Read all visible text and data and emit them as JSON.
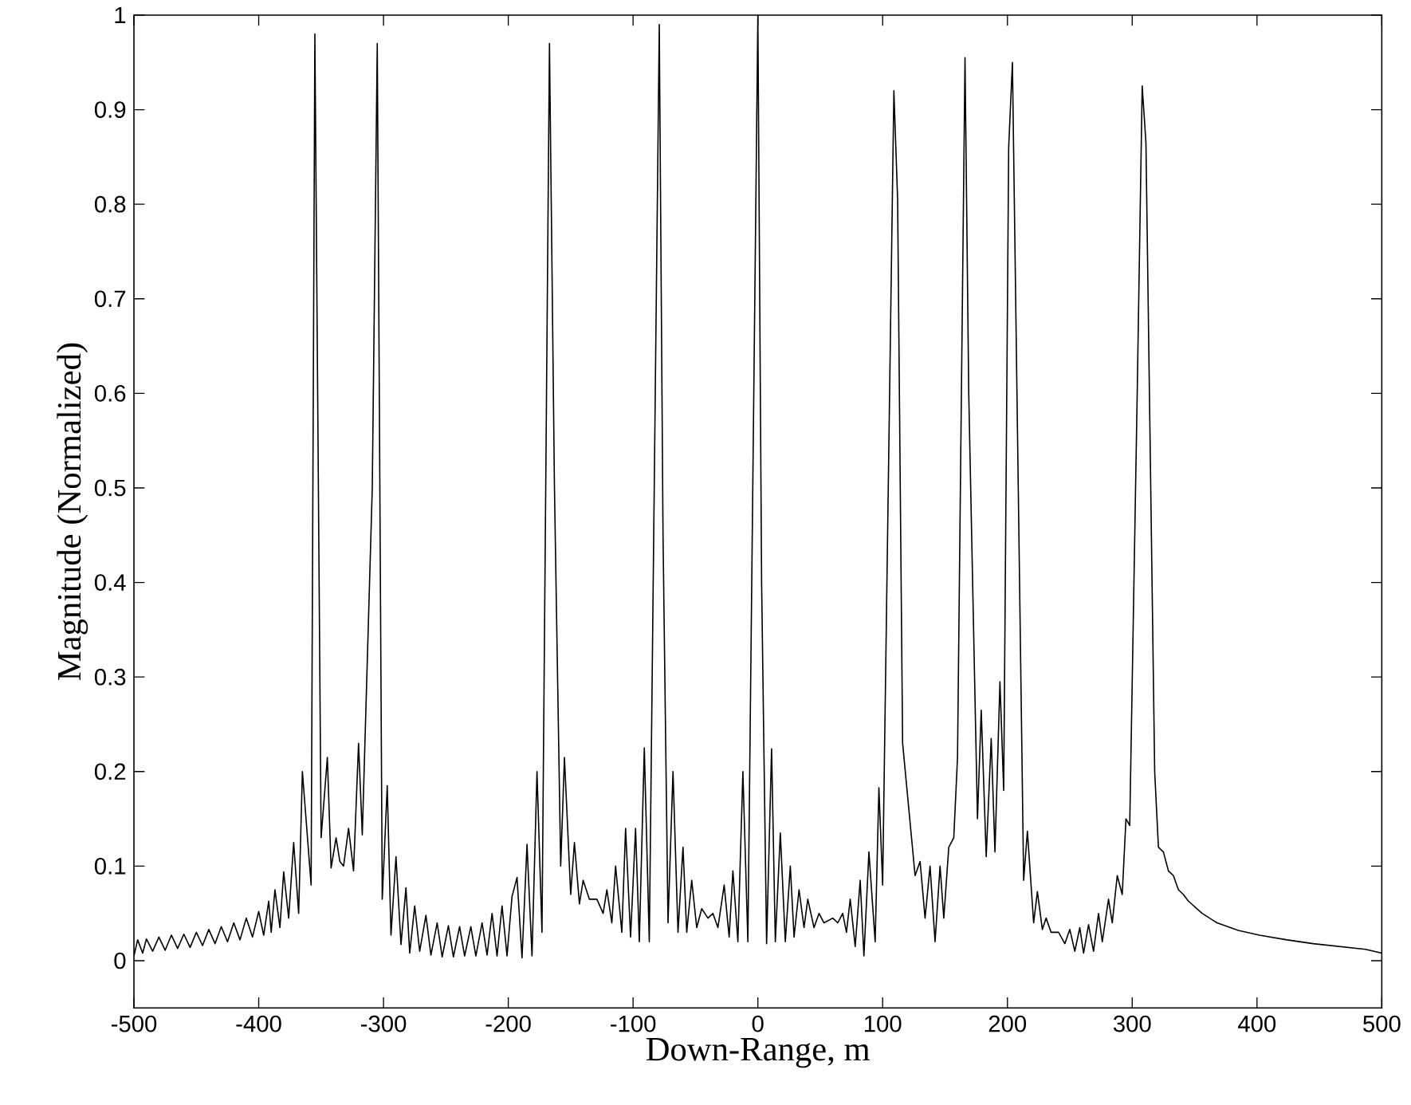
{
  "chart_data": {
    "type": "line",
    "xlabel": "Down-Range, m",
    "ylabel": "Magnitude (Normalized)",
    "color": "#000000",
    "x": [
      -500,
      -497,
      -493,
      -490,
      -485,
      -480,
      -475,
      -470,
      -465,
      -460,
      -455,
      -450,
      -445,
      -440,
      -435,
      -430,
      -425,
      -420,
      -415,
      -410,
      -405,
      -400,
      -396,
      -392,
      -390,
      -387,
      -383,
      -380,
      -376,
      -372,
      -368,
      -365,
      -358,
      -355,
      -350,
      -345,
      -342,
      -338,
      -335,
      -332,
      -328,
      -324,
      -320,
      -317,
      -309,
      -305,
      -301,
      -297,
      -294,
      -290,
      -286,
      -282,
      -279,
      -275,
      -271,
      -266,
      -262,
      -257,
      -253,
      -248,
      -244,
      -239,
      -235,
      -230,
      -226,
      -221,
      -217,
      -213,
      -209,
      -205,
      -201,
      -197,
      -193,
      -189,
      -185,
      -181,
      -177,
      -173,
      -167,
      -163,
      -158,
      -155,
      -150,
      -147,
      -143,
      -140,
      -135,
      -129,
      -124,
      -121,
      -117,
      -114,
      -109,
      -106,
      -102,
      -98,
      -95,
      -91,
      -87,
      -79,
      -76,
      -72,
      -68,
      -64,
      -60,
      -57,
      -53,
      -49,
      -45,
      -40,
      -36,
      -32,
      -27,
      -23,
      -20,
      -16,
      -12,
      -8,
      0,
      3,
      7,
      11,
      14,
      18,
      22,
      26,
      29,
      33,
      37,
      40,
      45,
      49,
      53,
      60,
      64,
      68,
      71,
      74,
      78,
      82,
      85,
      89,
      94,
      97,
      100,
      109,
      112,
      116,
      126,
      130,
      134,
      138,
      142,
      146,
      149,
      153,
      157,
      160,
      166,
      169,
      176,
      179,
      183,
      187,
      190,
      194,
      197,
      201,
      204,
      213,
      216,
      221,
      224,
      228,
      231,
      235,
      241,
      246,
      250,
      254,
      258,
      261,
      265,
      269,
      273,
      276,
      281,
      284,
      288,
      292,
      295,
      298,
      304,
      308,
      311,
      318,
      321,
      325,
      329,
      333,
      337,
      341,
      345,
      356,
      368,
      385,
      402,
      424,
      445,
      466,
      487,
      500
    ],
    "values": [
      0.005,
      0.022,
      0.008,
      0.023,
      0.01,
      0.025,
      0.011,
      0.027,
      0.013,
      0.028,
      0.014,
      0.03,
      0.016,
      0.033,
      0.018,
      0.036,
      0.02,
      0.04,
      0.022,
      0.045,
      0.025,
      0.052,
      0.027,
      0.063,
      0.03,
      0.075,
      0.035,
      0.094,
      0.045,
      0.125,
      0.05,
      0.2,
      0.08,
      0.98,
      0.13,
      0.215,
      0.098,
      0.13,
      0.105,
      0.1,
      0.14,
      0.095,
      0.23,
      0.133,
      0.5,
      0.97,
      0.065,
      0.185,
      0.027,
      0.11,
      0.017,
      0.077,
      0.008,
      0.058,
      0.01,
      0.048,
      0.006,
      0.04,
      0.004,
      0.037,
      0.004,
      0.036,
      0.005,
      0.036,
      0.005,
      0.04,
      0.006,
      0.05,
      0.005,
      0.058,
      0.005,
      0.068,
      0.088,
      0.003,
      0.123,
      0.005,
      0.2,
      0.03,
      0.97,
      0.5,
      0.1,
      0.215,
      0.07,
      0.125,
      0.06,
      0.085,
      0.065,
      0.065,
      0.05,
      0.075,
      0.04,
      0.1,
      0.03,
      0.14,
      0.025,
      0.14,
      0.02,
      0.225,
      0.02,
      0.99,
      0.45,
      0.04,
      0.2,
      0.03,
      0.12,
      0.03,
      0.085,
      0.035,
      0.055,
      0.045,
      0.05,
      0.035,
      0.08,
      0.025,
      0.095,
      0.02,
      0.2,
      0.02,
      1.0,
      0.4,
      0.018,
      0.224,
      0.02,
      0.135,
      0.02,
      0.1,
      0.025,
      0.075,
      0.035,
      0.065,
      0.035,
      0.05,
      0.04,
      0.045,
      0.04,
      0.05,
      0.03,
      0.065,
      0.015,
      0.085,
      0.005,
      0.115,
      0.02,
      0.183,
      0.08,
      0.92,
      0.805,
      0.23,
      0.09,
      0.105,
      0.045,
      0.1,
      0.02,
      0.1,
      0.045,
      0.12,
      0.13,
      0.215,
      0.955,
      0.6,
      0.15,
      0.265,
      0.11,
      0.235,
      0.115,
      0.295,
      0.18,
      0.86,
      0.95,
      0.085,
      0.137,
      0.04,
      0.073,
      0.033,
      0.045,
      0.03,
      0.03,
      0.018,
      0.033,
      0.01,
      0.035,
      0.008,
      0.038,
      0.01,
      0.05,
      0.02,
      0.065,
      0.04,
      0.09,
      0.07,
      0.15,
      0.143,
      0.6,
      0.925,
      0.865,
      0.2,
      0.12,
      0.115,
      0.095,
      0.09,
      0.075,
      0.07,
      0.063,
      0.05,
      0.04,
      0.032,
      0.027,
      0.022,
      0.018,
      0.015,
      0.012,
      0.008
    ],
    "xlim": [
      -500,
      500
    ],
    "ylim": [
      -0.05,
      1
    ],
    "xticks": [
      -500,
      -400,
      -300,
      -200,
      -100,
      0,
      100,
      200,
      300,
      400,
      500
    ],
    "yticks": [
      0,
      0.1,
      0.2,
      0.3,
      0.4,
      0.5,
      0.6,
      0.7,
      0.8,
      0.9,
      1
    ]
  }
}
